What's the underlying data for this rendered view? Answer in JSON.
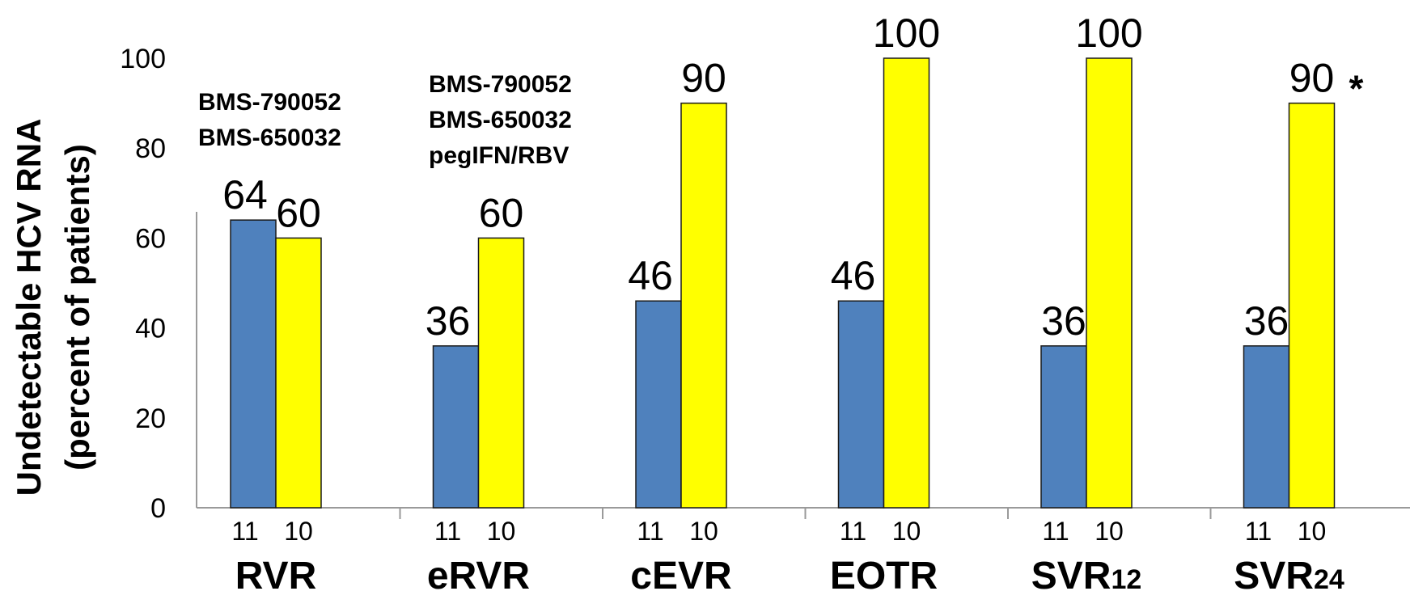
{
  "chart_data": {
    "type": "bar",
    "ylabel_lines": [
      "Undetectable HCV RNA",
      "(percent of patients)"
    ],
    "ylim": [
      0,
      100
    ],
    "yticks": [
      0,
      20,
      40,
      60,
      80,
      100
    ],
    "grid": false,
    "categories": [
      {
        "main": "RVR",
        "sub": ""
      },
      {
        "main": "eRVR",
        "sub": ""
      },
      {
        "main": "cEVR",
        "sub": ""
      },
      {
        "main": "EOTR",
        "sub": ""
      },
      {
        "main": "SVR",
        "sub": "12"
      },
      {
        "main": "SVR",
        "sub": "24"
      }
    ],
    "series": [
      {
        "legend_lines": [
          "BMS-790052",
          "BMS-650032"
        ],
        "color": "#4f81bd",
        "n": [
          "11",
          "11",
          "11",
          "11",
          "11",
          "11"
        ],
        "values": [
          64,
          36,
          46,
          46,
          36,
          36
        ]
      },
      {
        "legend_lines": [
          "BMS-790052",
          "BMS-650032",
          "pegIFN/RBV"
        ],
        "color": "#ffff00",
        "n": [
          "10",
          "10",
          "10",
          "10",
          "10",
          "10"
        ],
        "values": [
          60,
          60,
          90,
          100,
          100,
          90
        ]
      }
    ],
    "annotations": [
      {
        "category_index": 5,
        "series_index": 1,
        "text": "*"
      }
    ]
  }
}
